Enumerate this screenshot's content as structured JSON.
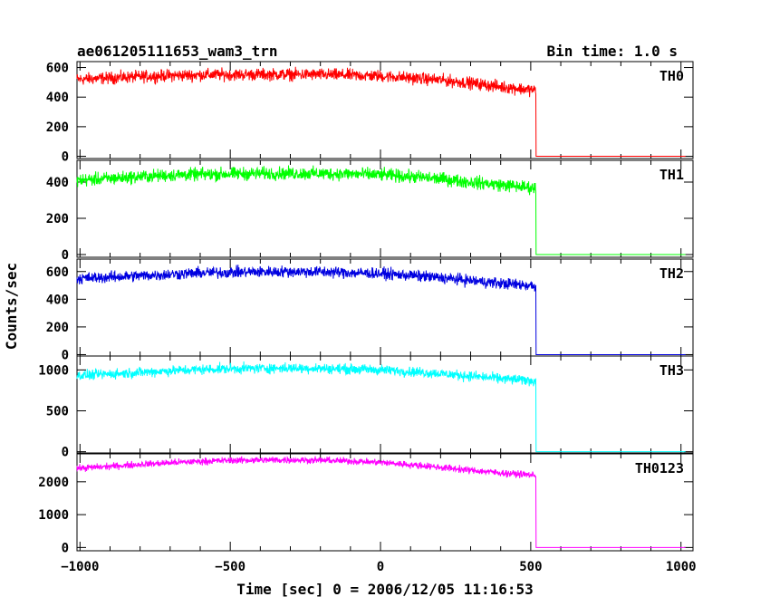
{
  "chart_data": {
    "type": "line",
    "title": "ae061205111653_wam3_trn",
    "bin_time_label": "Bin time: 1.0 s",
    "xlabel": "Time [sec] 0 = 2006/12/05 11:16:53",
    "ylabel": "Counts/sec",
    "xlim": [
      -1010,
      1040
    ],
    "x_ticks": [
      -1000,
      -500,
      0,
      500,
      1000
    ],
    "x_tick_labels": [
      "−1000",
      "−500",
      "0",
      "500",
      "1000"
    ],
    "data_x_range": [
      -1010,
      1015
    ],
    "step_time": 517,
    "grid": false,
    "panels": [
      {
        "name": "TH0",
        "color": "#ff0000",
        "ylim": [
          -15,
          640
        ],
        "y_ticks": [
          0,
          200,
          400,
          600
        ],
        "y_tick_labels": [
          "0",
          "200",
          "400",
          "600"
        ],
        "x": [
          -1010,
          -900,
          -800,
          -700,
          -600,
          -500,
          -400,
          -300,
          -200,
          -100,
          0,
          100,
          200,
          300,
          400,
          500,
          517,
          518,
          1015
        ],
        "y": [
          520,
          530,
          538,
          545,
          550,
          552,
          553,
          553,
          552,
          548,
          542,
          530,
          515,
          495,
          470,
          450,
          445,
          0,
          0
        ],
        "noise": 40
      },
      {
        "name": "TH1",
        "color": "#00ff00",
        "ylim": [
          -15,
          520
        ],
        "y_ticks": [
          0,
          200,
          400
        ],
        "y_tick_labels": [
          "0",
          "200",
          "400"
        ],
        "x": [
          -1010,
          -900,
          -800,
          -700,
          -600,
          -500,
          -400,
          -300,
          -200,
          -100,
          0,
          100,
          200,
          300,
          400,
          500,
          517,
          518,
          1015
        ],
        "y": [
          410,
          420,
          430,
          438,
          442,
          445,
          447,
          448,
          447,
          445,
          440,
          430,
          418,
          400,
          385,
          370,
          365,
          0,
          0
        ],
        "noise": 35
      },
      {
        "name": "TH2",
        "color": "#0000e0",
        "ylim": [
          -10,
          690
        ],
        "y_ticks": [
          0,
          200,
          400,
          600
        ],
        "y_tick_labels": [
          "0",
          "200",
          "400",
          "600"
        ],
        "x": [
          -1010,
          -900,
          -800,
          -700,
          -600,
          -500,
          -400,
          -300,
          -200,
          -100,
          0,
          100,
          200,
          300,
          400,
          500,
          517,
          518,
          1015
        ],
        "y": [
          550,
          560,
          570,
          580,
          590,
          595,
          598,
          600,
          598,
          592,
          585,
          572,
          555,
          535,
          515,
          500,
          495,
          0,
          0
        ],
        "noise": 40
      },
      {
        "name": "TH3",
        "color": "#00ffff",
        "ylim": [
          -15,
          1170
        ],
        "y_ticks": [
          0,
          500,
          1000
        ],
        "y_tick_labels": [
          "0",
          "500",
          "1000"
        ],
        "x": [
          -1010,
          -900,
          -800,
          -700,
          -600,
          -500,
          -400,
          -300,
          -200,
          -100,
          0,
          100,
          200,
          300,
          400,
          500,
          517,
          518,
          1015
        ],
        "y": [
          930,
          950,
          970,
          990,
          1005,
          1015,
          1020,
          1022,
          1018,
          1010,
          1000,
          980,
          955,
          925,
          895,
          870,
          865,
          0,
          0
        ],
        "noise": 60
      },
      {
        "name": "TH0123",
        "color": "#ff00ff",
        "ylim": [
          -100,
          2850
        ],
        "y_ticks": [
          0,
          1000,
          2000
        ],
        "y_tick_labels": [
          "0",
          "1000",
          "2000"
        ],
        "x": [
          -1010,
          -900,
          -800,
          -700,
          -600,
          -500,
          -400,
          -300,
          -200,
          -100,
          0,
          100,
          200,
          300,
          400,
          500,
          517,
          518,
          1015
        ],
        "y": [
          2410,
          2470,
          2530,
          2580,
          2620,
          2650,
          2660,
          2665,
          2655,
          2630,
          2590,
          2520,
          2440,
          2350,
          2270,
          2210,
          2200,
          0,
          0
        ],
        "noise": 100
      }
    ]
  }
}
